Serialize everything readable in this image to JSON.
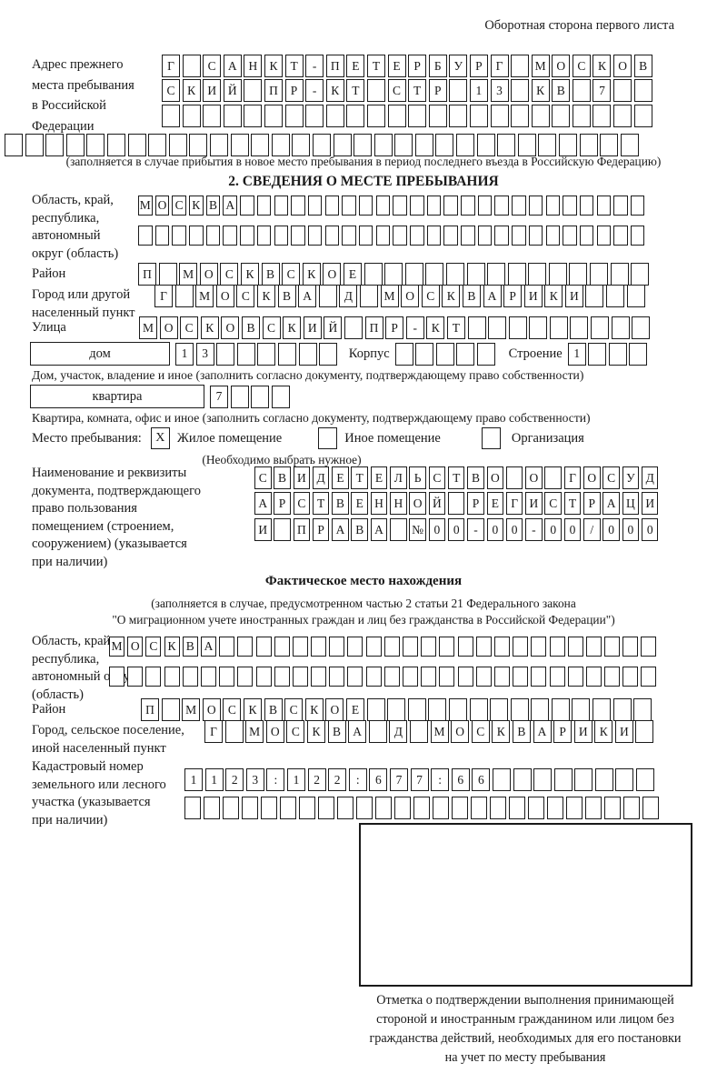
{
  "page_note": "Оборотная сторона первого листа",
  "prev_address": {
    "label": [
      "Адрес прежнего",
      "места пребывания",
      "в Российской",
      "Федерации"
    ],
    "rows": [
      {
        "text": "Г САНКТ-ПЕТЕРБУРГ МОСКОВ",
        "len": 24
      },
      {
        "text": "СКИЙ ПР-КТ СТР 13 КВ 7",
        "len": 24
      },
      {
        "text": "",
        "len": 24
      },
      {
        "text": "",
        "len": 31
      }
    ],
    "note": "(заполняется в случае прибытия в новое место пребывания в период последнего въезда в Российскую Федерацию)"
  },
  "section2": {
    "title": "2. СВЕДЕНИЯ О МЕСТЕ ПРЕБЫВАНИЯ",
    "region": {
      "label": [
        "Область, край,",
        "республика,",
        "автономный",
        "округ (область)"
      ],
      "rows": [
        {
          "text": "МОСКВА",
          "len": 30
        },
        {
          "text": "",
          "len": 30
        }
      ]
    },
    "district": {
      "label": "Район",
      "row": {
        "text": "П МОСКВСКОЕ",
        "len": 25
      }
    },
    "city": {
      "label": [
        "Город или другой",
        "населенный пункт"
      ],
      "row": {
        "text": "Г МОСКВА Д МОСКВАРИКИ",
        "len": 24
      }
    },
    "street": {
      "label": "Улица",
      "row": {
        "text": "МОСКОВСКИЙ ПР-КТ",
        "len": 25
      }
    },
    "house": {
      "box_label": "дом",
      "number": {
        "text": "13",
        "len": 8
      },
      "korpus_label": "Корпус",
      "korpus": {
        "text": "",
        "len": 5
      },
      "stroenie_label": "Строение",
      "stroenie": {
        "text": "1",
        "len": 4
      },
      "caption": "Дом, участок, владение и иное (заполнить согласно документу, подтверждающему право собственности)"
    },
    "apartment": {
      "box_label": "квартира",
      "number": {
        "text": "7",
        "len": 4
      },
      "caption": "Квартира, комната, офис и иное (заполнить согласно документу, подтверждающему право собственности)"
    },
    "stay_type": {
      "label": "Место пребывания:",
      "options": [
        {
          "label": "Жилое помещение",
          "mark": "X"
        },
        {
          "label": "Иное помещение",
          "mark": ""
        },
        {
          "label": "Организация",
          "mark": ""
        }
      ],
      "note": "(Необходимо выбрать нужное)"
    },
    "document": {
      "label": [
        "Наименование и реквизиты",
        "документа, подтверждающего",
        "право пользования",
        "помещением (строением,",
        "сооружением) (указывается",
        "при наличии)"
      ],
      "rows": [
        {
          "text": "СВИДЕТЕЛЬСТВО О ГОСУД",
          "len": 21
        },
        {
          "text": "АРСТВЕННОЙ РЕГИСТРАЦИ",
          "len": 21
        },
        {
          "text": "И ПРАВА №00-00-00/000",
          "len": 21
        }
      ]
    }
  },
  "actual_location": {
    "title": "Фактическое место нахождения",
    "note_line1": "(заполняется в случае, предусмотренном частью 2 статьи 21 Федерального закона",
    "note_line2": "\"О миграционном учете иностранных граждан и лиц без гражданства в Российской Федерации\")",
    "region": {
      "label": [
        "Область, край,",
        "республика,",
        "автономный округ",
        "(область)"
      ],
      "rows": [
        {
          "text": "МОСКВА",
          "len": 30
        },
        {
          "text": "",
          "len": 30
        }
      ]
    },
    "district": {
      "label": "Район",
      "row": {
        "text": "П МОСКВСКОЕ",
        "len": 25
      }
    },
    "city": {
      "label": [
        "Город, сельское поселение,",
        "иной населенный пункт"
      ],
      "row": {
        "text": "Г МОСКВА Д МОСКВАРИКИ",
        "len": 22
      }
    },
    "cadastre": {
      "label": [
        "Кадастровый номер",
        "земельного или лесного",
        "участка (указывается",
        "при наличии)"
      ],
      "rows": [
        {
          "text": "1123:122:677:66",
          "len": 23
        },
        {
          "text": "",
          "len": 25
        }
      ]
    },
    "stamp_caption": [
      "Отметка о подтверждении выполнения принимающей",
      "стороной и иностранным гражданином или лицом без",
      "гражданства действий, необходимых для его постановки",
      "на учет по месту пребывания"
    ]
  }
}
